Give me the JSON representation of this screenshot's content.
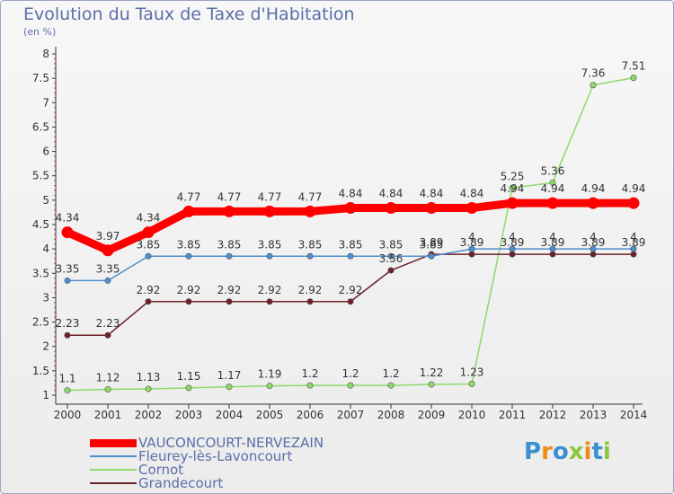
{
  "header": {
    "title": "Evolution du Taux de Taxe d'Habitation",
    "unit": "(en %)"
  },
  "logo": {
    "text": "Proxiti"
  },
  "chart_data": {
    "type": "line",
    "title": "Evolution du Taux de Taxe d'Habitation",
    "ylabel": "(en %)",
    "xlabel": "",
    "x": [
      "2000",
      "2001",
      "2002",
      "2003",
      "2004",
      "2005",
      "2006",
      "2007",
      "2008",
      "2009",
      "2010",
      "2011",
      "2012",
      "2013",
      "2014"
    ],
    "ylim": [
      1,
      8
    ],
    "yticks": [
      "1",
      "1.5",
      "2",
      "2.5",
      "3",
      "3.5",
      "4",
      "4.5",
      "5",
      "5.5",
      "6",
      "6.5",
      "7",
      "7.5",
      "8"
    ],
    "grid": false,
    "legend_position": "bottom-left",
    "series": [
      {
        "name": "VAUCONCOURT-NERVEZAIN",
        "color": "#ff0000",
        "values": [
          4.34,
          3.97,
          4.34,
          4.77,
          4.77,
          4.77,
          4.77,
          4.84,
          4.84,
          4.84,
          4.84,
          4.94,
          4.94,
          4.94,
          4.94
        ],
        "labels": [
          "4.34",
          "3.97",
          "4.34",
          "4.77",
          "4.77",
          "4.77",
          "4.77",
          "4.84",
          "4.84",
          "4.84",
          "4.84",
          "4.94",
          "4.94",
          "4.94",
          "4.94"
        ]
      },
      {
        "name": "Fleurey-lès-Lavoncourt",
        "color": "#4f8fcd",
        "values": [
          3.35,
          3.35,
          3.85,
          3.85,
          3.85,
          3.85,
          3.85,
          3.85,
          3.85,
          3.85,
          4,
          4,
          4,
          4,
          4
        ],
        "labels": [
          "3.35",
          "3.35",
          "3.85",
          "3.85",
          "3.85",
          "3.85",
          "3.85",
          "3.85",
          "3.85",
          "3.85",
          "4",
          "4",
          "4",
          "4",
          "4"
        ]
      },
      {
        "name": "Cornot",
        "color": "#8fd96a",
        "values": [
          1.1,
          1.12,
          1.13,
          1.15,
          1.17,
          1.19,
          1.2,
          1.2,
          1.2,
          1.22,
          1.23,
          5.25,
          5.36,
          7.36,
          7.51
        ],
        "labels": [
          "1.1",
          "1.12",
          "1.13",
          "1.15",
          "1.17",
          "1.19",
          "1.2",
          "1.2",
          "1.2",
          "1.22",
          "1.23",
          "5.25",
          "5.36",
          "7.36",
          "7.51"
        ]
      },
      {
        "name": "Grandecourt",
        "color": "#6e1f2a",
        "values": [
          2.23,
          2.23,
          2.92,
          2.92,
          2.92,
          2.92,
          2.92,
          2.92,
          3.56,
          3.89,
          3.89,
          3.89,
          3.89,
          3.89,
          3.89
        ],
        "labels": [
          "2.23",
          "2.23",
          "2.92",
          "2.92",
          "2.92",
          "2.92",
          "2.92",
          "2.92",
          "3.56",
          "3.89",
          "3.89",
          "3.89",
          "3.89",
          "3.89",
          "3.89"
        ]
      }
    ]
  }
}
